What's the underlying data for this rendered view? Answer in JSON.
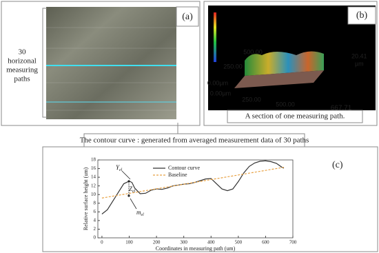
{
  "panel_a": {
    "label": "(a)",
    "note": [
      "30",
      "horizonal",
      "measuring",
      "paths"
    ]
  },
  "panel_b": {
    "label": "(b)",
    "scale_max": "20.41",
    "scale_unit": "µm",
    "axis_labels": [
      "500.00",
      "250.00",
      "0.00µm",
      "0.00µm",
      "250.00",
      "500.00",
      "667.71"
    ],
    "caption": "A section of one measuring path."
  },
  "callout": "The contour curve : generated from averaged measurement data of 30 paths",
  "chart_data": {
    "type": "line",
    "label": "(c)",
    "xlabel": "Coordinates in measuring path (um)",
    "ylabel": "Relative surface height (um)",
    "xlim": [
      -15,
      700
    ],
    "ylim": [
      0,
      18
    ],
    "xticks": [
      0,
      100,
      200,
      300,
      400,
      500,
      600,
      700
    ],
    "yticks": [
      0,
      2,
      4,
      6,
      8,
      10,
      12,
      14,
      16,
      18
    ],
    "series": [
      {
        "name": "Contour curve",
        "color": "#333333",
        "dash": false,
        "x": [
          0,
          20,
          40,
          60,
          80,
          100,
          110,
          120,
          140,
          160,
          180,
          200,
          220,
          240,
          260,
          280,
          300,
          320,
          340,
          360,
          380,
          400,
          420,
          440,
          460,
          480,
          500,
          520,
          540,
          560,
          580,
          600,
          620,
          640,
          660,
          667
        ],
        "values": [
          5.5,
          6.5,
          8.5,
          10.5,
          12.5,
          13.1,
          12.8,
          11.5,
          10.2,
          10.3,
          11,
          11.3,
          11.2,
          11.5,
          12,
          12.2,
          12.4,
          12.5,
          12.8,
          13.2,
          13.6,
          13.7,
          12.5,
          11.3,
          10.9,
          11.3,
          13,
          15,
          16.5,
          17.3,
          17.7,
          17.8,
          17.6,
          17.2,
          16.3,
          16.1
        ]
      },
      {
        "name": "Baseline",
        "color": "#e8a040",
        "dash": true,
        "x": [
          0,
          667
        ],
        "values": [
          9.2,
          16.3
        ]
      }
    ],
    "annotations": [
      {
        "text": "Y",
        "sub": "el"
      },
      {
        "text": "Z",
        "sub": "el"
      },
      {
        "text": "m",
        "sub": "el"
      }
    ]
  }
}
